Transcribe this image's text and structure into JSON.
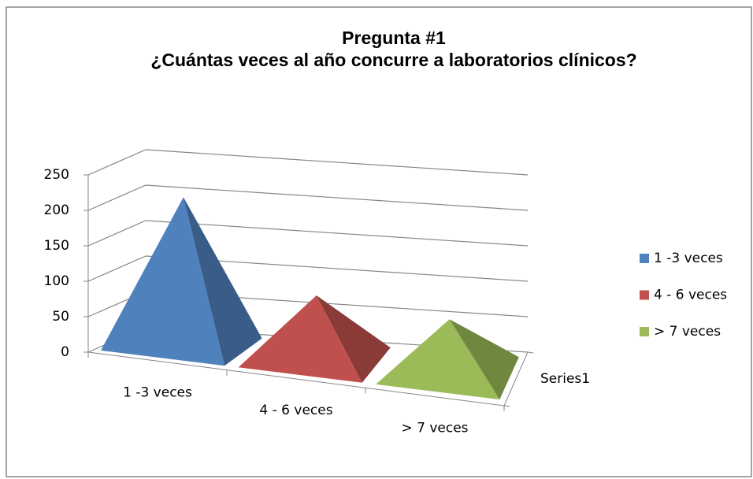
{
  "chart_data": {
    "type": "pyramid3d",
    "title": "Pregunta #1",
    "subtitle": "¿Cuántas veces al año concurre a laboratorios clínicos?",
    "categories": [
      "1 -3 veces",
      "4 - 6 veces",
      "> 7 veces"
    ],
    "colors": [
      "#4f81bd",
      "#c0504d",
      "#9bbb59"
    ],
    "series": [
      {
        "name": "Series1",
        "values": [
          210,
          90,
          75
        ]
      }
    ],
    "ylim": [
      0,
      250
    ],
    "yticks": [
      0,
      50,
      100,
      150,
      200,
      250
    ],
    "grid": true,
    "legend": "right"
  }
}
